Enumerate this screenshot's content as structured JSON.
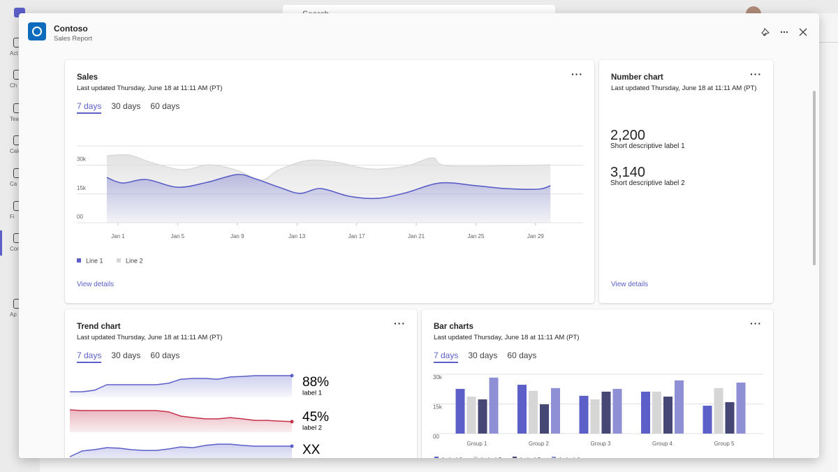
{
  "app": {
    "nav": [
      "Act",
      "Ch",
      "Tea",
      "Cale",
      "Ca",
      "Fi",
      "Con",
      "Ap"
    ],
    "search": "Search"
  },
  "dialog": {
    "title": "Contoso",
    "subtitle": "Sales Report"
  },
  "sales": {
    "title": "Sales",
    "updated": "Last updated Thursday, June 18 at 11:11 AM (PT)",
    "tabs": [
      "7 days",
      "30 days",
      "60 days"
    ],
    "active_tab": 0,
    "link": "View details",
    "chart_data": {
      "type": "area",
      "xlim": [
        -1.76,
        32.19
      ],
      "xticks": [
        {
          "value": 1,
          "label": "Jan 1"
        },
        {
          "value": 5,
          "label": "Jan 5"
        },
        {
          "value": 9,
          "label": "Jan 9"
        },
        {
          "value": 13,
          "label": "Jan 13"
        },
        {
          "value": 17,
          "label": "Jan 17"
        },
        {
          "value": 21,
          "label": "Jan 21"
        },
        {
          "value": 25,
          "label": "Jan 25"
        },
        {
          "value": 29,
          "label": "Jan 29"
        }
      ],
      "ylim": [
        0,
        40000
      ],
      "yticks": [
        {
          "value": 0,
          "label": "00"
        },
        {
          "value": 15000,
          "label": "15k"
        },
        {
          "value": 30000,
          "label": "30k"
        }
      ],
      "grid": true,
      "series": [
        {
          "name": "Line 1",
          "color": "#5b5fc7",
          "x": [
            0.25,
            1.3,
            2.9,
            5,
            7,
            9,
            10.2,
            11.8,
            13.2,
            14.6,
            16.5,
            18.4,
            20.3,
            22.6,
            25,
            27,
            29.2,
            30
          ],
          "values": [
            23600,
            20700,
            22500,
            18500,
            21100,
            25100,
            22900,
            18500,
            15300,
            17800,
            13800,
            12700,
            15600,
            20700,
            19300,
            17800,
            17500,
            19300
          ]
        },
        {
          "name": "Line 2",
          "color": "#d6d6d6",
          "x": [
            0.25,
            1.75,
            3.15,
            5.3,
            7.1,
            9,
            10.6,
            11.8,
            13.7,
            15.6,
            17.9,
            20.3,
            22.1,
            23.3,
            30
          ],
          "values": [
            34900,
            35300,
            31600,
            27600,
            30200,
            27300,
            22200,
            27600,
            32400,
            31600,
            28000,
            29500,
            33800,
            29500,
            30200
          ]
        }
      ]
    }
  },
  "number_chart": {
    "title": "Number chart",
    "updated": "Last updated Thursday, June 18 at 11:11 AM (PT)",
    "items": [
      {
        "value": 2200,
        "value_label": "2,200",
        "label": "Short descriptive label 1"
      },
      {
        "value": 3140,
        "value_label": "3,140",
        "label": "Short descriptive label 2"
      }
    ],
    "link": "View details"
  },
  "trend_chart": {
    "title": "Trend chart",
    "updated": "Last updated Thursday, June 18 at 11:11 AM (PT)",
    "tabs": [
      "7 days",
      "30 days",
      "60 days"
    ],
    "active_tab": 0,
    "chart_data": {
      "type": "sparkline",
      "ylim": [
        0,
        100
      ],
      "items": [
        {
          "value": 88,
          "value_label": "88%",
          "label": "label 1",
          "color": "#5b5fc7",
          "values": [
            22,
            22,
            28,
            50,
            50,
            50,
            50,
            50,
            56,
            72,
            75,
            75,
            72,
            81,
            83,
            86,
            86,
            86,
            86
          ]
        },
        {
          "value": 45,
          "value_label": "45%",
          "label": "label 2",
          "color": "#c4314b",
          "values": [
            89,
            86,
            86,
            86,
            86,
            86,
            86,
            86,
            81,
            64,
            58,
            53,
            53,
            58,
            53,
            47,
            47,
            44,
            42
          ]
        },
        {
          "value": "XX",
          "color": "#5b5fc7",
          "values": [
            33,
            56,
            61,
            69,
            67,
            61,
            58,
            58,
            64,
            72,
            69,
            78,
            83,
            83,
            78,
            75,
            75,
            75,
            75
          ]
        }
      ]
    }
  },
  "bar_charts": {
    "title": "Bar charts",
    "updated": "Last updated Thursday, June 18 at 11:11 AM (PT)",
    "tabs": [
      "7 days",
      "30 days",
      "60 days"
    ],
    "active_tab": 0,
    "chart_data": {
      "type": "bar",
      "categories": [
        "Group 1",
        "Group 2",
        "Group 3",
        "Group 4",
        "Group 5"
      ],
      "ylim": [
        0,
        30000
      ],
      "yticks": [
        {
          "value": 0,
          "label": "00"
        },
        {
          "value": 15000,
          "label": "15k"
        },
        {
          "value": 30000,
          "label": "30k"
        }
      ],
      "grid": true,
      "series": [
        {
          "name": "Label 1",
          "color": "#5b5fc7",
          "values": [
            22600,
            24700,
            19100,
            21200,
            14100
          ]
        },
        {
          "name": "Label 2",
          "color": "#d6d6d6",
          "values": [
            18700,
            21600,
            17300,
            21200,
            23000
          ]
        },
        {
          "name": "Label 3",
          "color": "#464775",
          "values": [
            17300,
            14800,
            21200,
            18700,
            15900
          ]
        },
        {
          "name": "Label 4",
          "color": "#8f8fd6",
          "values": [
            28300,
            23000,
            22600,
            26900,
            25800
          ]
        }
      ]
    }
  }
}
